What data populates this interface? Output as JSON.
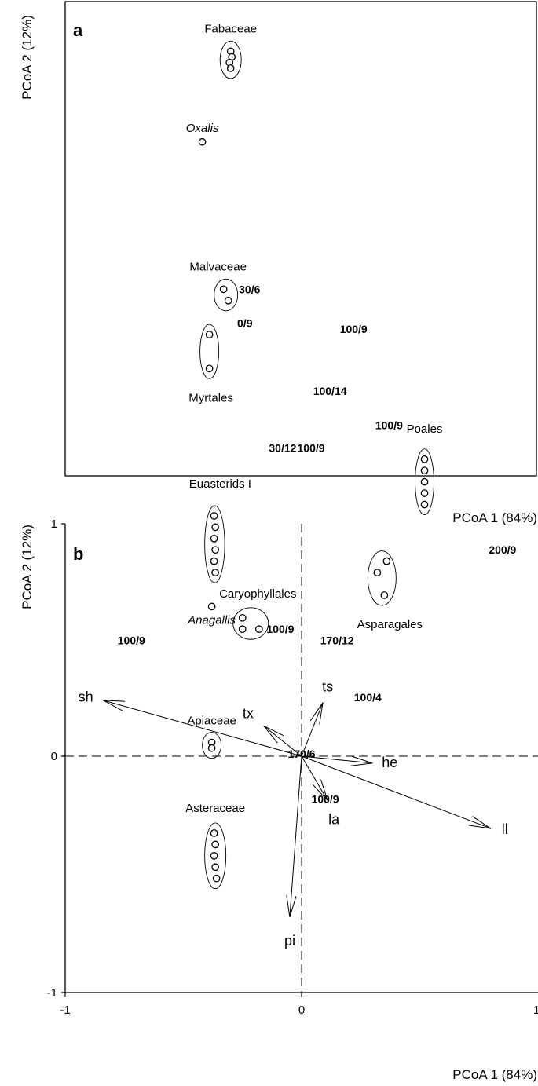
{
  "chart_data": [
    {
      "panel": "a",
      "type": "scatter",
      "xlabel": "PCoA 1 (84%)",
      "ylabel": "PCoA 2 (12%)",
      "grid": false,
      "legend": "none",
      "groups": [
        {
          "label": "Fabaceae",
          "italic": false,
          "points": [
            [
              -0.3,
              0.83
            ],
            [
              -0.295,
              0.825
            ],
            [
              -0.305,
              0.82
            ],
            [
              -0.3,
              0.815
            ]
          ]
        },
        {
          "label": "Oxalis",
          "italic": true,
          "points": [
            [
              -0.42,
              0.75
            ]
          ]
        },
        {
          "label": "Malvaceae",
          "italic": false,
          "points": [
            [
              -0.33,
              0.62
            ],
            [
              -0.31,
              0.61
            ]
          ]
        },
        {
          "label": "Myrtales",
          "italic": false,
          "points": [
            [
              -0.39,
              0.58
            ],
            [
              -0.39,
              0.55
            ]
          ]
        },
        {
          "label": "Euasterids I",
          "italic": false,
          "points": [
            [
              -0.37,
              0.42
            ],
            [
              -0.365,
              0.41
            ],
            [
              -0.37,
              0.4
            ],
            [
              -0.365,
              0.39
            ],
            [
              -0.37,
              0.38
            ],
            [
              -0.365,
              0.37
            ]
          ]
        },
        {
          "label": "Anagallis",
          "italic": true,
          "points": [
            [
              -0.38,
              0.34
            ]
          ]
        },
        {
          "label": "Caryophyllales",
          "italic": false,
          "points": [
            [
              -0.25,
              0.33
            ],
            [
              -0.25,
              0.32
            ],
            [
              -0.18,
              0.32
            ]
          ]
        },
        {
          "label": "Asparagales",
          "italic": false,
          "points": [
            [
              0.35,
              0.35
            ],
            [
              0.32,
              0.37
            ],
            [
              0.36,
              0.38
            ]
          ]
        },
        {
          "label": "Poales",
          "italic": false,
          "points": [
            [
              0.52,
              0.47
            ],
            [
              0.52,
              0.46
            ],
            [
              0.52,
              0.45
            ],
            [
              0.52,
              0.44
            ],
            [
              0.52,
              0.43
            ]
          ]
        },
        {
          "label": "Apiaceae",
          "italic": false,
          "points": [
            [
              -0.38,
              0.22
            ],
            [
              -0.38,
              0.215
            ]
          ]
        },
        {
          "label": "Asteraceae",
          "italic": false,
          "points": [
            [
              -0.37,
              0.14
            ],
            [
              -0.365,
              0.13
            ],
            [
              -0.37,
              0.12
            ],
            [
              -0.365,
              0.11
            ],
            [
              -0.36,
              0.1
            ]
          ]
        }
      ],
      "annotations": [
        {
          "text": "30/6",
          "x": -0.22,
          "y": 0.62
        },
        {
          "text": "0/9",
          "x": -0.24,
          "y": 0.59
        },
        {
          "text": "100/9",
          "x": 0.22,
          "y": 0.585
        },
        {
          "text": "100/14",
          "x": 0.12,
          "y": 0.53
        },
        {
          "text": "100/9",
          "x": 0.37,
          "y": 0.5
        },
        {
          "text": "30/12",
          "x": -0.08,
          "y": 0.48
        },
        {
          "text": "100/9",
          "x": 0.04,
          "y": 0.48
        },
        {
          "text": "200/9",
          "x": 0.85,
          "y": 0.39
        },
        {
          "text": "100/9",
          "x": -0.72,
          "y": 0.31
        },
        {
          "text": "100/9",
          "x": -0.09,
          "y": 0.32
        },
        {
          "text": "170/12",
          "x": 0.15,
          "y": 0.31
        },
        {
          "text": "100/4",
          "x": 0.28,
          "y": 0.26
        },
        {
          "text": "170/6",
          "x": 0.0,
          "y": 0.21
        },
        {
          "text": "100/9",
          "x": 0.1,
          "y": 0.17
        }
      ]
    },
    {
      "panel": "b",
      "type": "biplot",
      "xlabel": "PCoA 1 (84%)",
      "ylabel": "PCoA 2 (12%)",
      "xlim": [
        -1,
        1
      ],
      "ylim": [
        -1,
        1
      ],
      "x_ticks": [
        "-1",
        "0",
        "1"
      ],
      "y_ticks": [
        "-1",
        "0",
        "1"
      ],
      "grid": false,
      "vectors": [
        {
          "label": "sh",
          "x": -0.84,
          "y": 0.24
        },
        {
          "label": "tx",
          "x": -0.16,
          "y": 0.13
        },
        {
          "label": "ts",
          "x": 0.09,
          "y": 0.23
        },
        {
          "label": "he",
          "x": 0.3,
          "y": -0.03
        },
        {
          "label": "ll",
          "x": 0.8,
          "y": -0.31
        },
        {
          "label": "la",
          "x": 0.11,
          "y": -0.19
        },
        {
          "label": "pi",
          "x": -0.05,
          "y": -0.69
        }
      ]
    }
  ]
}
